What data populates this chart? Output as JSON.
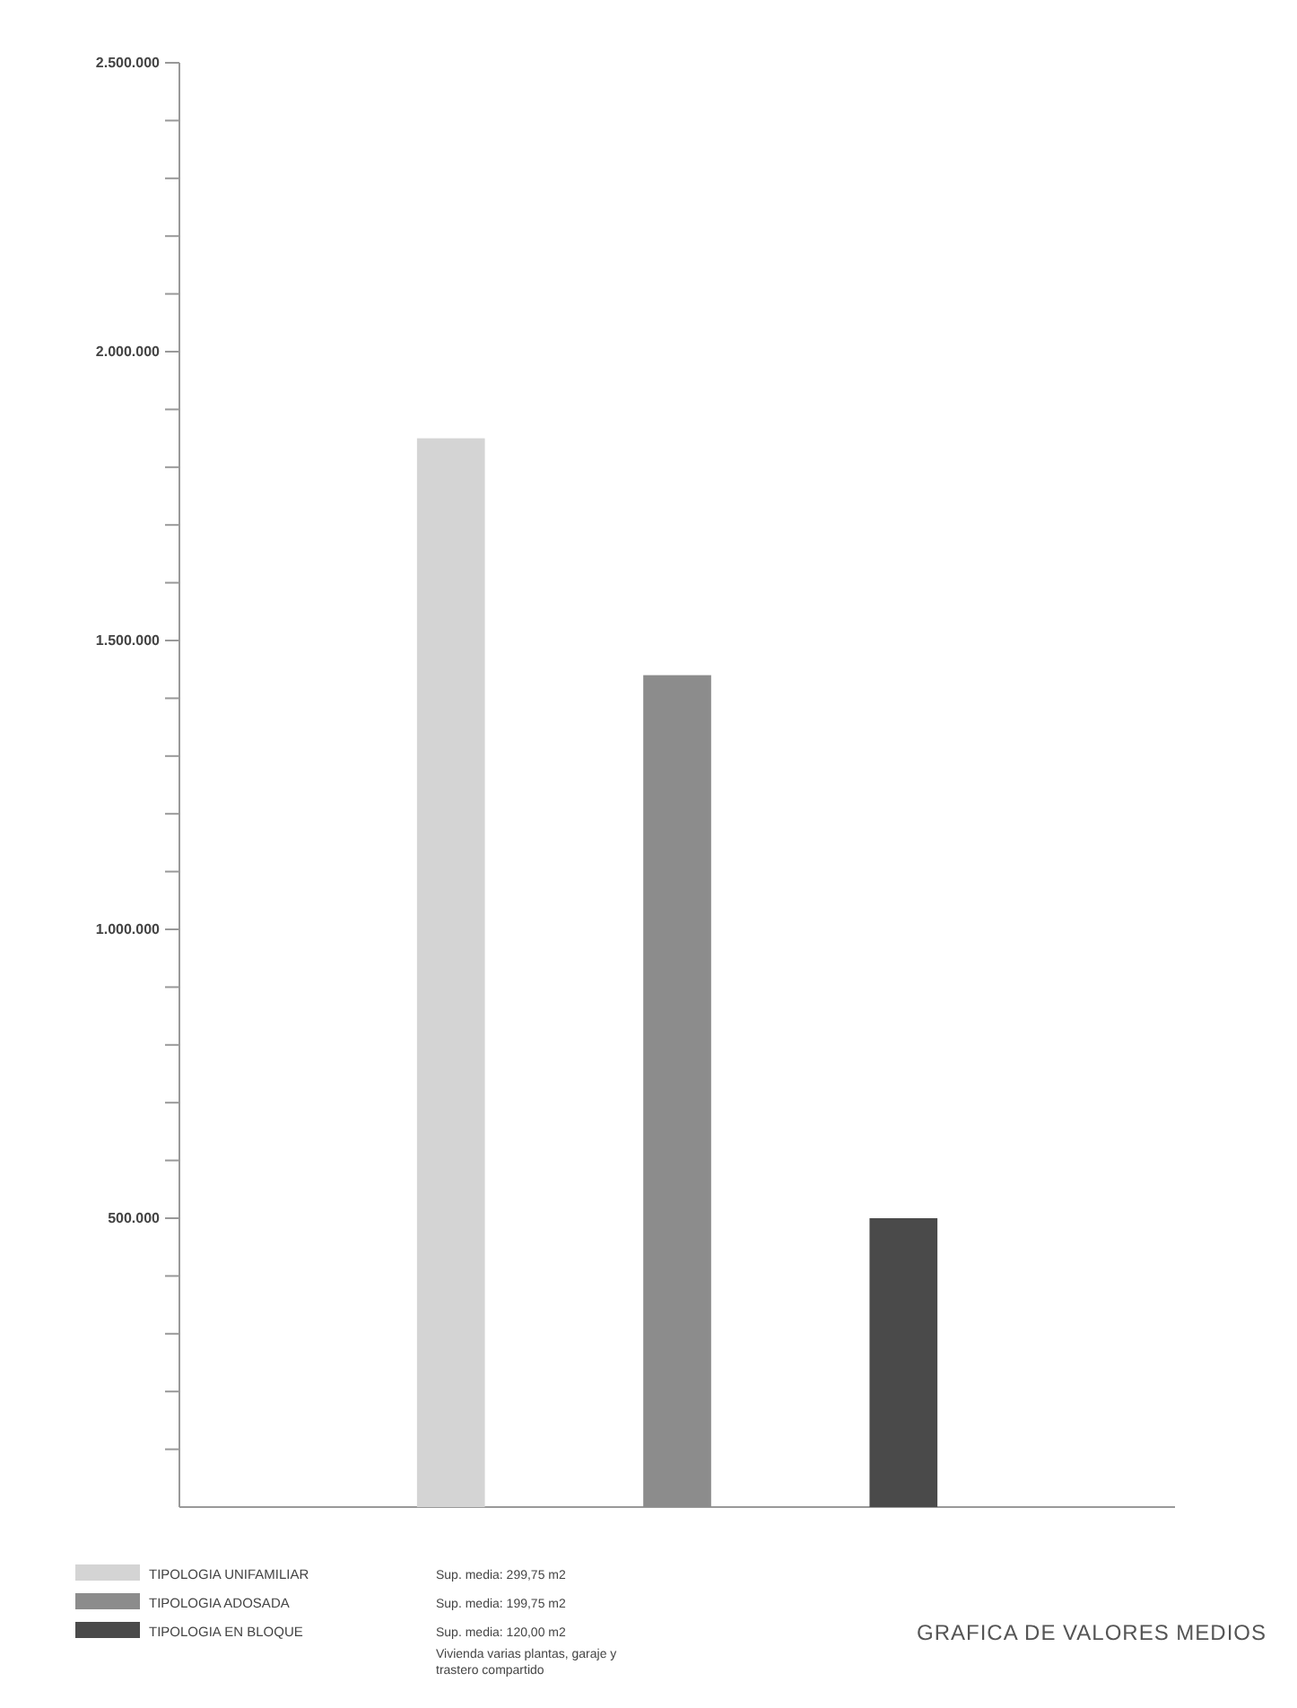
{
  "chart_data": {
    "type": "bar",
    "title": "GRAFICA DE VALORES MEDIOS",
    "categories": [
      null,
      null,
      null
    ],
    "series": [
      {
        "name": "TIPOLOGIA UNIFAMILIAR",
        "color": "#d4d4d4",
        "values": [
          1850000,
          null,
          null
        ]
      },
      {
        "name": "TIPOLOGIA ADOSADA",
        "color": "#8c8c8c",
        "values": [
          null,
          1440000,
          null
        ]
      },
      {
        "name": "TIPOLOGIA EN BLOQUE",
        "color": "#4a4a4a",
        "values": [
          null,
          null,
          500000
        ]
      }
    ],
    "annotations": [
      "Sup. media: 299,75 m2",
      "Sup. media: 199,75 m2",
      "Sup. media: 120,00 m2",
      "Vivienda varias plantas, garaje y trastero compartido"
    ],
    "ylim": [
      0,
      2500000
    ],
    "yticks": [
      {
        "value": 100000,
        "label": null
      },
      {
        "value": 200000,
        "label": null
      },
      {
        "value": 300000,
        "label": null
      },
      {
        "value": 400000,
        "label": null
      },
      {
        "value": 500000,
        "label": "500.000"
      },
      {
        "value": 600000,
        "label": null
      },
      {
        "value": 700000,
        "label": null
      },
      {
        "value": 800000,
        "label": null
      },
      {
        "value": 900000,
        "label": null
      },
      {
        "value": 1000000,
        "label": "1.000.000"
      },
      {
        "value": 1100000,
        "label": null
      },
      {
        "value": 1200000,
        "label": null
      },
      {
        "value": 1300000,
        "label": null
      },
      {
        "value": 1400000,
        "label": null
      },
      {
        "value": 1500000,
        "label": "1.500.000"
      },
      {
        "value": 1600000,
        "label": null
      },
      {
        "value": 1700000,
        "label": null
      },
      {
        "value": 1800000,
        "label": null
      },
      {
        "value": 1900000,
        "label": null
      },
      {
        "value": 2000000,
        "label": "2.000.000"
      },
      {
        "value": 2100000,
        "label": null
      },
      {
        "value": 2200000,
        "label": null
      },
      {
        "value": 2300000,
        "label": null
      },
      {
        "value": 2400000,
        "label": null
      },
      {
        "value": 2500000,
        "label": "2.500.000"
      }
    ],
    "grid": false,
    "legend": "bottom left"
  }
}
